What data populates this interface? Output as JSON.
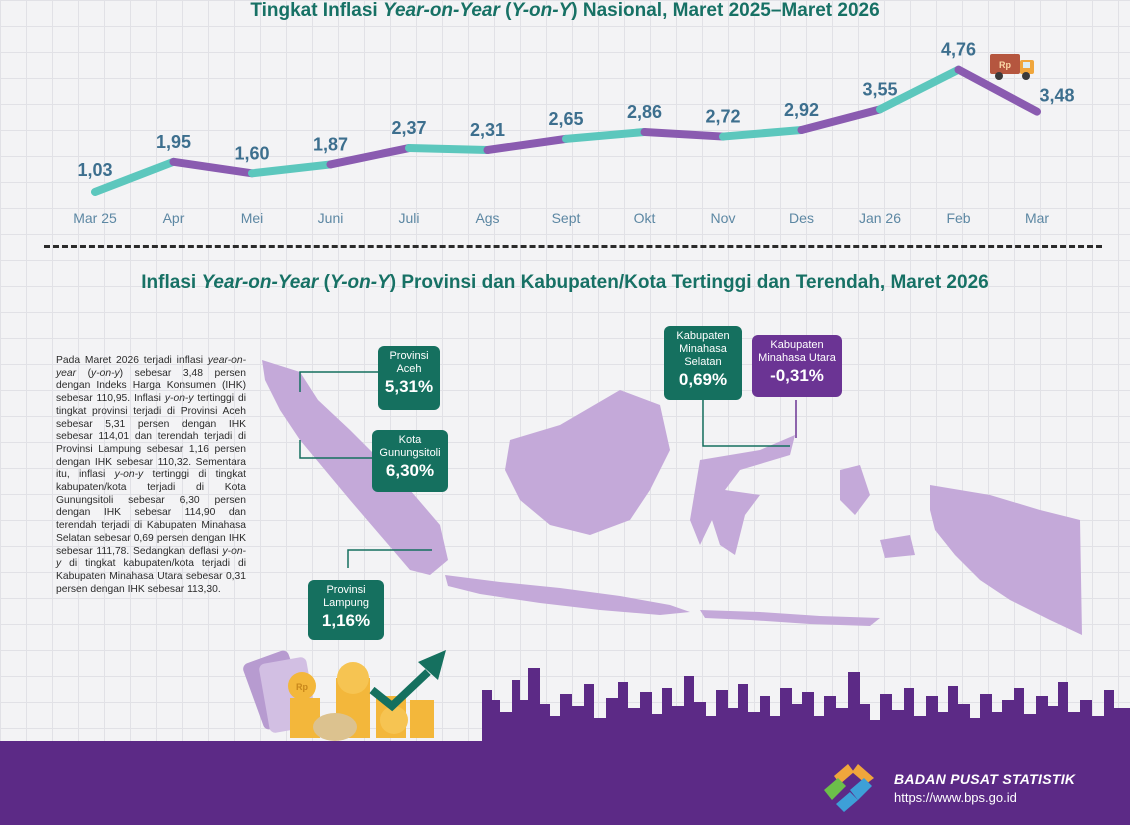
{
  "title_national_parts": [
    "Tingkat Inflasi ",
    "Year-on-Year",
    " (",
    "Y-on-Y",
    ") Nasional, Maret 2025–Maret 2026"
  ],
  "title_provincial_parts": [
    "Inflasi ",
    "Year-on-Year",
    " (",
    "Y-on-Y",
    ") Provinsi dan Kabupaten/Kota Tertinggi dan Terendah, Maret 2026"
  ],
  "chart_data": {
    "type": "line",
    "categories": [
      "Mar 25",
      "Apr",
      "Mei",
      "Juni",
      "Juli",
      "Ags",
      "Sept",
      "Okt",
      "Nov",
      "Des",
      "Jan 26",
      "Feb",
      "Mar"
    ],
    "values": [
      1.03,
      1.95,
      1.6,
      1.87,
      2.37,
      2.31,
      2.65,
      2.86,
      2.72,
      2.92,
      3.55,
      4.76,
      3.48
    ],
    "value_labels": [
      "1,03",
      "1,95",
      "1,60",
      "1,87",
      "2,37",
      "2,31",
      "2,65",
      "2,86",
      "2,72",
      "2,92",
      "3,55",
      "4,76",
      "3,48"
    ],
    "segment_colors": [
      "#5cc7bd",
      "#8a5bb0"
    ],
    "label_color": "#3d6f8e",
    "grid": true
  },
  "summary_parts": [
    {
      "t": "Pada Maret 2026 terjadi inflasi "
    },
    {
      "t": "year-on-year",
      "i": true
    },
    {
      "t": " ("
    },
    {
      "t": "y-on-y",
      "i": true
    },
    {
      "t": ") sebesar 3,48 persen dengan Indeks Harga Konsumen (IHK) sebesar 110,95. Inflasi "
    },
    {
      "t": "y-on-y",
      "i": true
    },
    {
      "t": " tertinggi di tingkat provinsi terjadi di Provinsi Aceh sebesar 5,31 persen dengan IHK sebesar 114,01 dan terendah terjadi di Provinsi Lampung sebesar 1,16 persen dengan IHK sebesar 110,32. Sementara itu, inflasi "
    },
    {
      "t": "y-on-y",
      "i": true
    },
    {
      "t": " tertinggi di tingkat kabupaten/kota terjadi di Kota Gunungsitoli sebesar 6,30 persen dengan IHK sebesar 114,90 dan terendah terjadi di Kabupaten Minahasa Selatan sebesar 0,69 persen dengan IHK sebesar 111,78. Sedangkan deflasi "
    },
    {
      "t": "y-on-y",
      "i": true
    },
    {
      "t": " di tingkat kabupaten/kota terjadi di Kabupaten Minahasa Utara sebesar 0,31 persen dengan IHK sebesar 113,30."
    }
  ],
  "callouts": {
    "aceh": {
      "label": "Provinsi Aceh",
      "value": "5,31%"
    },
    "gunungsitoli": {
      "label": "Kota Gunungsitoli",
      "value": "6,30%"
    },
    "lampung": {
      "label": "Provinsi Lampung",
      "value": "1,16%"
    },
    "minahasa_selatan": {
      "label": "Kabupaten Minahasa Selatan",
      "value": "0,69%"
    },
    "minahasa_utara": {
      "label": "Kabupaten Minahasa Utara",
      "value": "-0,31%"
    }
  },
  "colors": {
    "teal": "#15705f",
    "purple": "#6b3494",
    "map": "#c4a9d9",
    "footer": "#5c2a86"
  },
  "truck_badge": "Rp",
  "coin_badge": "Rp",
  "footer": {
    "org": "BADAN PUSAT STATISTIK",
    "url": "https://www.bps.go.id"
  }
}
